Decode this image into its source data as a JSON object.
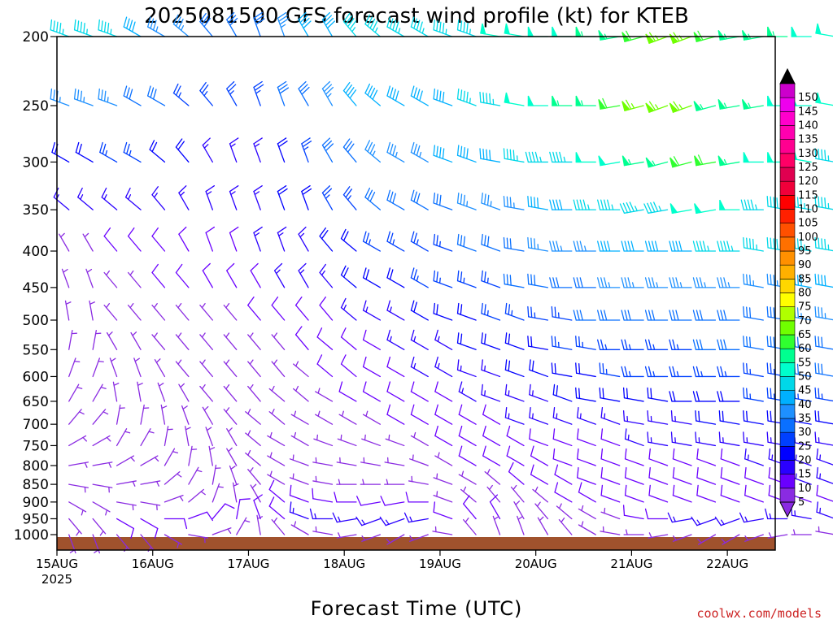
{
  "chart_data": {
    "type": "wind-barb",
    "title": "2025081500 GFS forecast wind profile (kt) for KTEB",
    "xlabel": "Forecast Time (UTC)",
    "credit": "coolwx.com/models",
    "y_ticks": [
      "200",
      "250",
      "300",
      "350",
      "400",
      "450",
      "500",
      "550",
      "600",
      "650",
      "700",
      "750",
      "800",
      "850",
      "900",
      "950",
      "1000"
    ],
    "ylim": [
      1000,
      200
    ],
    "x_ticks": [
      "15AUG",
      "16AUG",
      "17AUG",
      "18AUG",
      "19AUG",
      "20AUG",
      "21AUG",
      "22AUG"
    ],
    "x_year": "2025",
    "surface_color": "#a0522d",
    "colorbar": {
      "levels": [
        "5",
        "10",
        "15",
        "20",
        "25",
        "30",
        "35",
        "40",
        "45",
        "50",
        "55",
        "60",
        "65",
        "70",
        "75",
        "80",
        "85",
        "90",
        "95",
        "100",
        "105",
        "110",
        "115",
        "120",
        "125",
        "130",
        "135",
        "140",
        "145",
        "150"
      ],
      "colors": [
        "#8a2be2",
        "#6a00ff",
        "#2a00ff",
        "#0000ff",
        "#0040ff",
        "#0a70ff",
        "#1e90ff",
        "#00b0ff",
        "#00d8e8",
        "#00ffcc",
        "#00ff90",
        "#30ff30",
        "#70ff00",
        "#b0ff00",
        "#ffff00",
        "#ffd700",
        "#ffb000",
        "#ff9000",
        "#ff7000",
        "#ff5000",
        "#ff2000",
        "#ff0000",
        "#f0003a",
        "#e00050",
        "#ff0066",
        "#ff0090",
        "#ff00b0",
        "#ff00cc",
        "#ee00ee",
        "#cc00cc"
      ]
    },
    "levels_hpa": [
      200,
      250,
      300,
      350,
      400,
      450,
      500,
      550,
      600,
      650,
      700,
      750,
      800,
      850,
      900,
      950,
      1000
    ],
    "forecast_hours_step": 6,
    "speed_kt": [
      [
        45,
        45,
        45,
        40,
        35,
        35,
        30,
        30,
        30,
        35,
        40,
        40,
        45,
        45,
        45,
        45,
        45,
        45,
        50,
        50,
        50,
        50,
        55,
        55,
        60,
        65,
        65,
        60,
        55,
        55,
        55,
        50,
        50,
        50,
        45,
        45
      ],
      [
        35,
        35,
        35,
        30,
        30,
        25,
        25,
        25,
        25,
        30,
        30,
        35,
        40,
        40,
        40,
        40,
        40,
        45,
        45,
        50,
        50,
        55,
        55,
        60,
        65,
        65,
        65,
        55,
        55,
        55,
        50,
        50,
        50,
        45,
        45,
        45
      ],
      [
        20,
        20,
        25,
        25,
        20,
        20,
        15,
        15,
        15,
        20,
        25,
        30,
        30,
        35,
        35,
        35,
        40,
        40,
        40,
        45,
        45,
        45,
        50,
        50,
        55,
        55,
        60,
        60,
        55,
        50,
        50,
        50,
        45,
        45,
        40,
        40
      ],
      [
        15,
        15,
        15,
        15,
        15,
        15,
        15,
        15,
        15,
        20,
        20,
        25,
        25,
        30,
        30,
        30,
        30,
        35,
        35,
        35,
        40,
        40,
        45,
        45,
        45,
        45,
        50,
        50,
        50,
        45,
        45,
        45,
        45,
        45,
        40,
        40
      ],
      [
        5,
        5,
        10,
        10,
        10,
        10,
        10,
        10,
        15,
        15,
        15,
        20,
        20,
        25,
        25,
        25,
        25,
        30,
        30,
        30,
        35,
        35,
        35,
        40,
        40,
        40,
        40,
        45,
        45,
        45,
        45,
        45,
        45,
        45,
        40,
        40
      ],
      [
        5,
        5,
        5,
        5,
        10,
        10,
        10,
        10,
        10,
        15,
        15,
        15,
        20,
        20,
        20,
        25,
        25,
        25,
        25,
        30,
        30,
        30,
        30,
        35,
        35,
        35,
        35,
        35,
        35,
        35,
        35,
        40,
        40,
        40,
        35,
        35
      ],
      [
        5,
        5,
        5,
        5,
        5,
        5,
        5,
        5,
        10,
        10,
        10,
        10,
        15,
        15,
        15,
        20,
        20,
        20,
        25,
        25,
        25,
        25,
        30,
        30,
        30,
        30,
        30,
        30,
        30,
        30,
        30,
        35,
        35,
        35,
        30,
        30
      ],
      [
        5,
        5,
        5,
        5,
        5,
        5,
        5,
        5,
        5,
        5,
        10,
        10,
        10,
        10,
        15,
        15,
        15,
        20,
        20,
        20,
        20,
        25,
        25,
        25,
        25,
        25,
        25,
        30,
        30,
        30,
        30,
        30,
        30,
        30,
        30,
        25
      ],
      [
        5,
        5,
        5,
        5,
        5,
        5,
        5,
        5,
        5,
        5,
        5,
        10,
        10,
        10,
        10,
        15,
        15,
        15,
        15,
        20,
        20,
        20,
        20,
        25,
        25,
        25,
        25,
        25,
        25,
        25,
        25,
        30,
        30,
        30,
        25,
        25
      ],
      [
        5,
        5,
        5,
        5,
        5,
        5,
        5,
        5,
        5,
        5,
        5,
        5,
        10,
        10,
        10,
        10,
        10,
        15,
        15,
        15,
        15,
        20,
        20,
        20,
        20,
        20,
        20,
        20,
        20,
        25,
        25,
        25,
        25,
        25,
        20,
        20
      ],
      [
        5,
        5,
        5,
        5,
        5,
        5,
        5,
        5,
        5,
        5,
        5,
        5,
        5,
        5,
        10,
        10,
        10,
        10,
        10,
        15,
        15,
        15,
        15,
        15,
        15,
        15,
        15,
        20,
        20,
        20,
        20,
        20,
        20,
        20,
        15,
        15
      ],
      [
        5,
        5,
        5,
        5,
        5,
        5,
        5,
        5,
        5,
        5,
        5,
        5,
        5,
        5,
        5,
        5,
        10,
        10,
        10,
        10,
        10,
        10,
        10,
        10,
        15,
        15,
        15,
        15,
        15,
        15,
        15,
        15,
        15,
        15,
        10,
        10
      ],
      [
        5,
        5,
        5,
        5,
        5,
        5,
        5,
        5,
        5,
        5,
        5,
        5,
        5,
        5,
        5,
        5,
        5,
        10,
        10,
        10,
        10,
        10,
        10,
        10,
        10,
        10,
        10,
        10,
        10,
        15,
        15,
        15,
        15,
        15,
        10,
        10
      ],
      [
        5,
        5,
        5,
        5,
        5,
        5,
        5,
        5,
        5,
        5,
        5,
        5,
        5,
        5,
        5,
        5,
        5,
        5,
        5,
        10,
        10,
        10,
        10,
        10,
        10,
        10,
        10,
        10,
        10,
        10,
        10,
        15,
        15,
        15,
        10,
        10
      ],
      [
        5,
        5,
        5,
        5,
        5,
        5,
        5,
        5,
        5,
        10,
        10,
        10,
        10,
        10,
        10,
        10,
        5,
        5,
        5,
        5,
        5,
        10,
        10,
        10,
        10,
        10,
        10,
        10,
        10,
        10,
        10,
        10,
        10,
        10,
        10,
        10
      ],
      [
        5,
        5,
        10,
        10,
        10,
        10,
        10,
        10,
        10,
        10,
        15,
        15,
        15,
        15,
        15,
        15,
        10,
        10,
        10,
        5,
        5,
        5,
        5,
        5,
        10,
        10,
        15,
        15,
        15,
        15,
        15,
        15,
        15,
        15,
        10,
        10
      ],
      [
        5,
        5,
        5,
        5,
        5,
        5,
        5,
        5,
        5,
        5,
        5,
        5,
        5,
        5,
        5,
        5,
        5,
        5,
        5,
        5,
        5,
        5,
        5,
        5,
        5,
        5,
        5,
        5,
        5,
        5,
        5,
        5,
        5,
        5,
        5,
        5
      ]
    ],
    "direction_deg": [
      [
        290,
        290,
        290,
        300,
        300,
        310,
        320,
        330,
        340,
        340,
        330,
        330,
        320,
        310,
        300,
        300,
        290,
        290,
        280,
        280,
        270,
        270,
        270,
        260,
        255,
        250,
        250,
        255,
        260,
        260,
        270,
        270,
        280,
        280,
        280,
        280
      ],
      [
        290,
        290,
        290,
        300,
        300,
        310,
        320,
        330,
        340,
        340,
        330,
        330,
        320,
        310,
        300,
        300,
        290,
        290,
        280,
        280,
        270,
        270,
        270,
        260,
        255,
        250,
        250,
        255,
        260,
        260,
        270,
        270,
        280,
        280,
        280,
        280
      ],
      [
        300,
        300,
        300,
        300,
        310,
        320,
        330,
        340,
        340,
        340,
        340,
        330,
        320,
        310,
        300,
        300,
        290,
        290,
        280,
        280,
        270,
        270,
        270,
        260,
        260,
        255,
        255,
        260,
        260,
        270,
        270,
        280,
        280,
        280,
        280,
        280
      ],
      [
        310,
        310,
        310,
        310,
        320,
        330,
        340,
        340,
        340,
        340,
        340,
        330,
        320,
        310,
        300,
        300,
        290,
        290,
        290,
        280,
        280,
        270,
        270,
        270,
        260,
        260,
        260,
        260,
        270,
        270,
        280,
        280,
        280,
        280,
        280,
        280
      ],
      [
        330,
        330,
        320,
        320,
        320,
        330,
        340,
        340,
        340,
        340,
        330,
        320,
        310,
        300,
        300,
        300,
        290,
        290,
        290,
        280,
        280,
        270,
        270,
        270,
        270,
        270,
        270,
        270,
        270,
        280,
        280,
        280,
        280,
        280,
        280,
        280
      ],
      [
        340,
        340,
        320,
        320,
        320,
        320,
        330,
        330,
        330,
        330,
        330,
        320,
        310,
        300,
        300,
        300,
        290,
        290,
        290,
        280,
        280,
        270,
        270,
        270,
        270,
        270,
        270,
        270,
        270,
        280,
        280,
        280,
        280,
        280,
        280,
        280
      ],
      [
        350,
        350,
        320,
        320,
        320,
        320,
        320,
        320,
        320,
        320,
        320,
        320,
        310,
        300,
        300,
        300,
        290,
        290,
        290,
        290,
        280,
        280,
        270,
        270,
        270,
        270,
        270,
        270,
        270,
        280,
        280,
        280,
        280,
        280,
        280,
        280
      ],
      [
        10,
        10,
        330,
        330,
        320,
        320,
        320,
        320,
        320,
        320,
        320,
        310,
        310,
        300,
        300,
        300,
        300,
        290,
        290,
        290,
        280,
        280,
        280,
        270,
        270,
        270,
        270,
        270,
        270,
        280,
        280,
        280,
        280,
        280,
        280,
        280
      ],
      [
        20,
        20,
        340,
        340,
        330,
        320,
        320,
        320,
        320,
        320,
        310,
        310,
        310,
        300,
        300,
        300,
        300,
        290,
        290,
        290,
        290,
        280,
        280,
        280,
        270,
        270,
        270,
        270,
        270,
        280,
        280,
        280,
        280,
        280,
        280,
        280
      ],
      [
        30,
        30,
        350,
        350,
        340,
        330,
        320,
        320,
        320,
        310,
        310,
        300,
        300,
        300,
        300,
        300,
        300,
        300,
        290,
        290,
        290,
        290,
        280,
        280,
        280,
        280,
        270,
        270,
        270,
        280,
        280,
        280,
        280,
        280,
        280,
        280
      ],
      [
        40,
        40,
        10,
        10,
        350,
        340,
        330,
        320,
        310,
        310,
        300,
        300,
        300,
        300,
        300,
        300,
        300,
        300,
        300,
        290,
        290,
        290,
        290,
        290,
        280,
        280,
        280,
        280,
        280,
        280,
        280,
        280,
        280,
        280,
        280,
        280
      ],
      [
        60,
        60,
        30,
        30,
        10,
        350,
        340,
        330,
        310,
        300,
        300,
        290,
        290,
        290,
        290,
        300,
        300,
        300,
        300,
        300,
        290,
        290,
        290,
        290,
        290,
        280,
        280,
        280,
        280,
        280,
        280,
        280,
        280,
        280,
        280,
        280
      ],
      [
        80,
        80,
        60,
        60,
        30,
        10,
        350,
        330,
        310,
        300,
        290,
        280,
        280,
        280,
        280,
        290,
        300,
        300,
        300,
        300,
        300,
        290,
        290,
        290,
        290,
        290,
        290,
        290,
        290,
        290,
        290,
        290,
        290,
        290,
        290,
        290
      ],
      [
        100,
        100,
        80,
        80,
        50,
        30,
        10,
        340,
        320,
        300,
        290,
        280,
        270,
        270,
        270,
        280,
        290,
        300,
        310,
        310,
        300,
        300,
        290,
        290,
        290,
        290,
        290,
        290,
        290,
        290,
        290,
        290,
        290,
        290,
        290,
        290
      ],
      [
        120,
        120,
        100,
        100,
        70,
        50,
        20,
        350,
        330,
        310,
        290,
        280,
        270,
        260,
        260,
        270,
        290,
        310,
        320,
        320,
        310,
        300,
        300,
        290,
        290,
        290,
        290,
        290,
        290,
        290,
        290,
        290,
        290,
        290,
        290,
        290
      ],
      [
        140,
        140,
        120,
        120,
        90,
        70,
        40,
        10,
        340,
        310,
        290,
        270,
        260,
        250,
        250,
        260,
        290,
        320,
        330,
        330,
        320,
        310,
        300,
        290,
        280,
        270,
        260,
        250,
        250,
        260,
        270,
        280,
        290,
        290,
        290,
        290
      ],
      [
        160,
        160,
        140,
        140,
        120,
        100,
        70,
        30,
        350,
        320,
        300,
        280,
        260,
        250,
        240,
        250,
        280,
        320,
        340,
        340,
        330,
        320,
        300,
        280,
        270,
        260,
        250,
        240,
        240,
        250,
        260,
        270,
        280,
        290,
        290,
        290
      ]
    ]
  }
}
